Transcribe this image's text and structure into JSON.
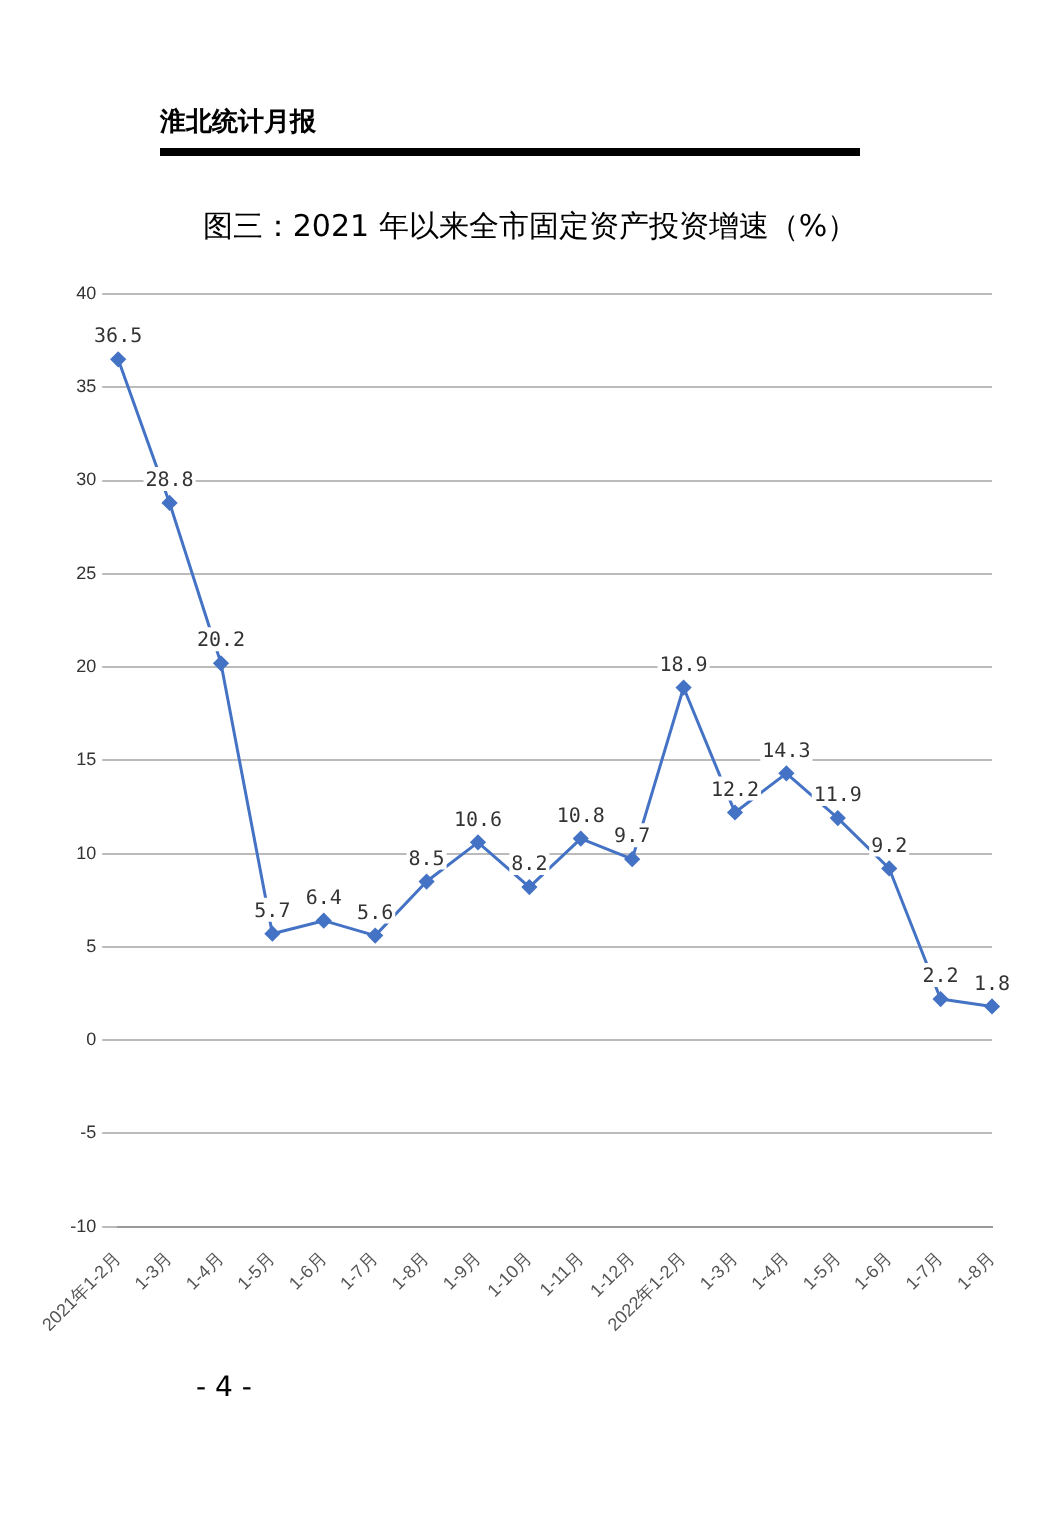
{
  "chart_data": {
    "type": "line",
    "title": "图三：2021 年以来全市固定资产投资增速（%）",
    "categories": [
      "2021年1-2月",
      "1-3月",
      "1-4月",
      "1-5月",
      "1-6月",
      "1-7月",
      "1-8月",
      "1-9月",
      "1-10月",
      "1-11月",
      "1-12月",
      "2022年1-2月",
      "1-3月",
      "1-4月",
      "1-5月",
      "1-6月",
      "1-7月",
      "1-8月"
    ],
    "series": [
      {
        "color": "#4472c4",
        "values": [
          36.5,
          28.8,
          20.2,
          5.7,
          6.4,
          5.6,
          8.5,
          10.6,
          8.2,
          10.8,
          9.7,
          18.9,
          12.2,
          14.3,
          11.9,
          9.2,
          2.2,
          1.8
        ]
      }
    ],
    "value_labels": [
      "36.5",
      "28.8",
      "20.2",
      "5.7",
      "6.4",
      "5.6",
      "8.5",
      "10.6",
      "8.2",
      "10.8",
      "9.7",
      "18.9",
      "12.2",
      "14.3",
      "11.9",
      "9.2",
      "2.2",
      "1.8"
    ],
    "ylim": [
      -10,
      40
    ],
    "yticks": [
      -10,
      -5,
      0,
      5,
      10,
      15,
      20,
      25,
      30,
      35,
      40
    ],
    "grid": "y",
    "legend": false,
    "marker": "diamond",
    "line_style": "solid",
    "annotations": [
      "淮北统计月报",
      "- 4 -"
    ]
  }
}
